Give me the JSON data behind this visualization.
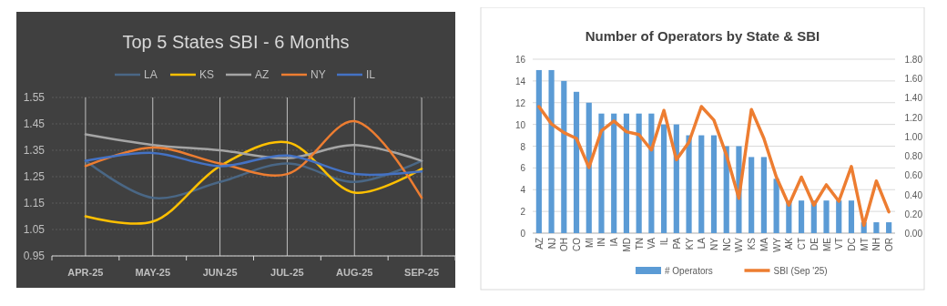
{
  "chart_data": [
    {
      "type": "line",
      "title": "Top 5 States SBI - 6 Months",
      "categories": [
        "APR-25",
        "MAY-25",
        "JUN-25",
        "JUL-25",
        "AUG-25",
        "SEP-25"
      ],
      "series": [
        {
          "name": "LA",
          "color": "#4a6785",
          "values": [
            1.31,
            1.17,
            1.23,
            1.3,
            1.23,
            1.31
          ]
        },
        {
          "name": "KS",
          "color": "#ffc000",
          "values": [
            1.1,
            1.08,
            1.29,
            1.38,
            1.19,
            1.28
          ]
        },
        {
          "name": "AZ",
          "color": "#a5a5a5",
          "values": [
            1.41,
            1.37,
            1.35,
            1.32,
            1.37,
            1.31
          ]
        },
        {
          "name": "NY",
          "color": "#ed7d31",
          "values": [
            1.29,
            1.36,
            1.3,
            1.26,
            1.46,
            1.17
          ]
        },
        {
          "name": "IL",
          "color": "#4472c4",
          "values": [
            1.31,
            1.34,
            1.29,
            1.33,
            1.26,
            1.27
          ]
        }
      ],
      "ylim": [
        0.95,
        1.55
      ],
      "yticks": [
        0.95,
        1.05,
        1.15,
        1.25,
        1.35,
        1.45,
        1.55
      ],
      "grid": true,
      "legend": "top",
      "marker": "none"
    },
    {
      "type": "bar",
      "title": "Number of Operators by State & SBI",
      "categories": [
        "AZ",
        "NJ",
        "OH",
        "CO",
        "MI",
        "IN",
        "IA",
        "MD",
        "TN",
        "VA",
        "IL",
        "PA",
        "KY",
        "LA",
        "NY",
        "NC",
        "WV",
        "KS",
        "MA",
        "WY",
        "AK",
        "CT",
        "DE",
        "ME",
        "VT",
        "DC",
        "MT",
        "NH",
        "OR"
      ],
      "series": [
        {
          "name": "# Operators",
          "type": "bar",
          "color": "#5b9bd5",
          "values": [
            15,
            15,
            14,
            13,
            12,
            11,
            11,
            11,
            11,
            11,
            10,
            10,
            9,
            9,
            9,
            8,
            8,
            7,
            7,
            5,
            3,
            3,
            3,
            3,
            3,
            3,
            1,
            1,
            1
          ]
        },
        {
          "name": "SBI (Sep '25)",
          "type": "line",
          "axis": "y2",
          "color": "#ed7d31",
          "values": [
            1.31,
            1.13,
            1.04,
            0.98,
            0.68,
            1.06,
            1.16,
            1.05,
            1.02,
            0.86,
            1.27,
            0.76,
            0.94,
            1.31,
            1.17,
            0.81,
            0.36,
            1.28,
            0.98,
            0.58,
            0.29,
            0.58,
            0.29,
            0.5,
            0.33,
            0.69,
            0.08,
            0.54,
            0.22
          ]
        }
      ],
      "ylim": [
        0,
        16
      ],
      "yticks": [
        0,
        2,
        4,
        6,
        8,
        10,
        12,
        14,
        16
      ],
      "y2lim": [
        0,
        1.8
      ],
      "y2ticks": [
        {
          "value": 0,
          "label": "0.00"
        },
        {
          "value": 0.2,
          "label": "0.20"
        },
        {
          "value": 0.4,
          "label": "0.40"
        },
        {
          "value": 0.6,
          "label": "0.60"
        },
        {
          "value": 0.8,
          "label": "0.80"
        },
        {
          "value": 1,
          "label": "1.00"
        },
        {
          "value": 1.2,
          "label": "1.20"
        },
        {
          "value": 1.4,
          "label": "1.40"
        },
        {
          "value": 1.6,
          "label": "1.60"
        },
        {
          "value": 1.8,
          "label": "1.80"
        }
      ],
      "grid": "y",
      "legend": "bottom",
      "marker": "none"
    }
  ]
}
